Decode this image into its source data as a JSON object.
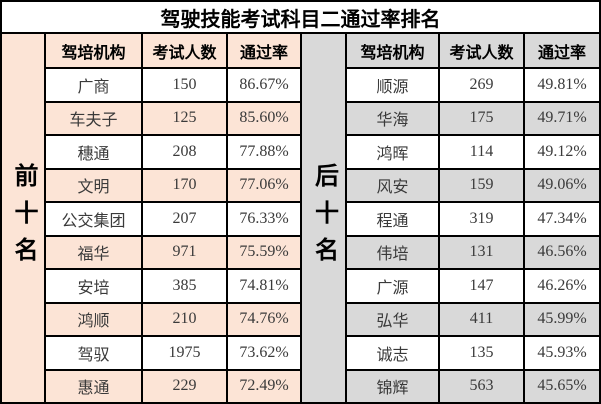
{
  "title": "驾驶技能考试科目二通过率排名",
  "colors": {
    "top10_fill": "#fce4d6",
    "bottom10_fill": "#d9d9d9",
    "border": "#000000",
    "text": "#3a3a3a",
    "title_text": "#000000"
  },
  "chart_data": {
    "type": "table",
    "title": "驾驶技能考试科目二通过率排名",
    "columns": [
      "驾培机构",
      "考试人数",
      "通过率"
    ],
    "sections": [
      {
        "label": "前十名",
        "rows": [
          [
            "广商",
            "150",
            "86.67%"
          ],
          [
            "车夫子",
            "125",
            "85.60%"
          ],
          [
            "穗通",
            "208",
            "77.88%"
          ],
          [
            "文明",
            "170",
            "77.06%"
          ],
          [
            "公交集团",
            "207",
            "76.33%"
          ],
          [
            "福华",
            "971",
            "75.59%"
          ],
          [
            "安培",
            "385",
            "74.81%"
          ],
          [
            "鸿顺",
            "210",
            "74.76%"
          ],
          [
            "驾驭",
            "1975",
            "73.62%"
          ],
          [
            "惠通",
            "229",
            "72.49%"
          ]
        ]
      },
      {
        "label": "后十名",
        "rows": [
          [
            "顺源",
            "269",
            "49.81%"
          ],
          [
            "华海",
            "175",
            "49.71%"
          ],
          [
            "鸿晖",
            "114",
            "49.12%"
          ],
          [
            "风安",
            "159",
            "49.06%"
          ],
          [
            "程通",
            "319",
            "47.34%"
          ],
          [
            "伟培",
            "131",
            "46.56%"
          ],
          [
            "广源",
            "147",
            "46.26%"
          ],
          [
            "弘华",
            "411",
            "45.99%"
          ],
          [
            "诚志",
            "135",
            "45.93%"
          ],
          [
            "锦辉",
            "563",
            "45.65%"
          ]
        ]
      }
    ]
  }
}
